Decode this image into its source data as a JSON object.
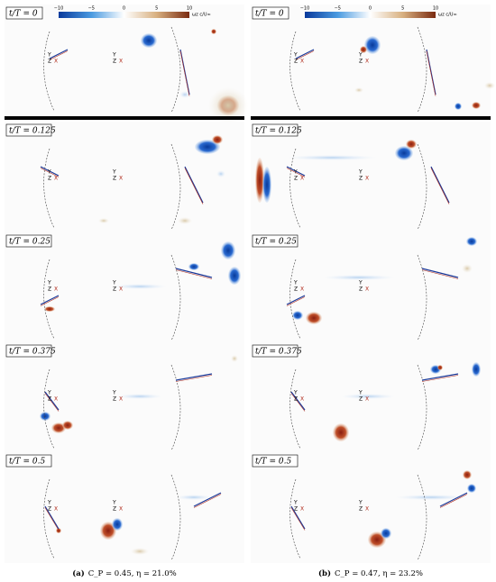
{
  "colorbar": {
    "ticks": [
      "−10",
      "−5",
      "0",
      "5",
      "10"
    ],
    "label": "ωz c/U∞"
  },
  "triad": [
    "Y",
    "Z",
    "X"
  ],
  "columns": [
    {
      "caption_label": "(a)",
      "caption": "C_P = 0.45, η = 21.0%",
      "panels": [
        "t/T = 0",
        "t/T = 0.125",
        "t/T = 0.25",
        "t/T = 0.375",
        "t/T = 0.5"
      ]
    },
    {
      "caption_label": "(b)",
      "caption": "C_P = 0.47, η = 23.2%",
      "panels": [
        "t/T = 0",
        "t/T = 0.125",
        "t/T = 0.25",
        "t/T = 0.375",
        "t/T = 0.5"
      ]
    }
  ]
}
